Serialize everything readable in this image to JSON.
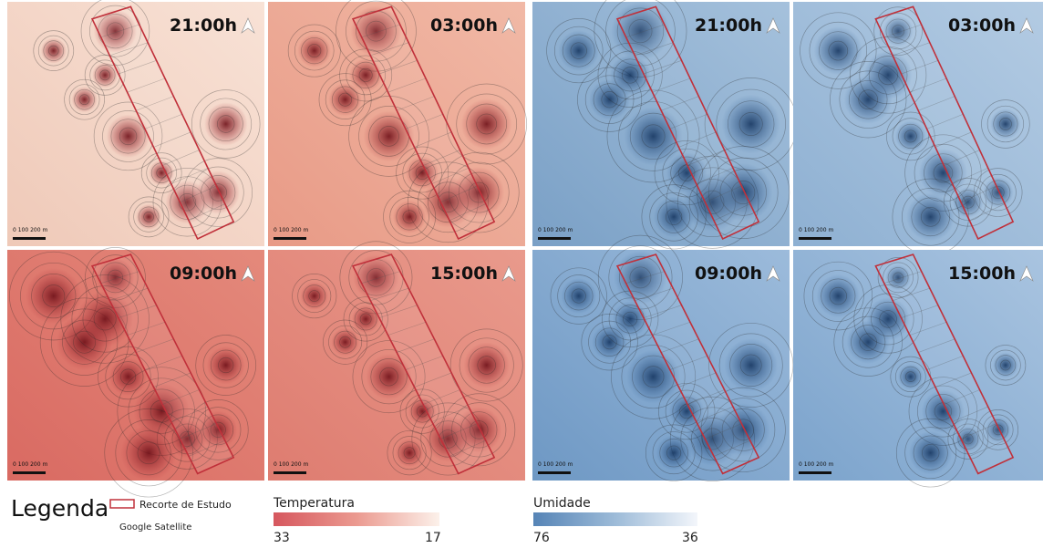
{
  "panels": [
    {
      "group": "temperature",
      "time": "21:00h",
      "scale_label": "0   100   200 m"
    },
    {
      "group": "temperature",
      "time": "03:00h",
      "scale_label": "0   100   200 m"
    },
    {
      "group": "humidity",
      "time": "21:00h",
      "scale_label": "0   100   200 m"
    },
    {
      "group": "humidity",
      "time": "03:00h",
      "scale_label": "0   100   200 m"
    },
    {
      "group": "temperature",
      "time": "09:00h",
      "scale_label": "0   100   200 m"
    },
    {
      "group": "temperature",
      "time": "15:00h",
      "scale_label": "0   100   200 m"
    },
    {
      "group": "humidity",
      "time": "09:00h",
      "scale_label": "0   100   200 m"
    },
    {
      "group": "humidity",
      "time": "15:00h",
      "scale_label": "0   100   200 m"
    }
  ],
  "legend": {
    "title": "Legenda",
    "study_area": "Recorte de Estudo",
    "basemap": "Google Satellite"
  },
  "temperature": {
    "label": "Temperatura",
    "min_label": "33",
    "max_label": "17"
  },
  "humidity": {
    "label": "Umidade",
    "min_label": "76",
    "max_label": "36"
  }
}
